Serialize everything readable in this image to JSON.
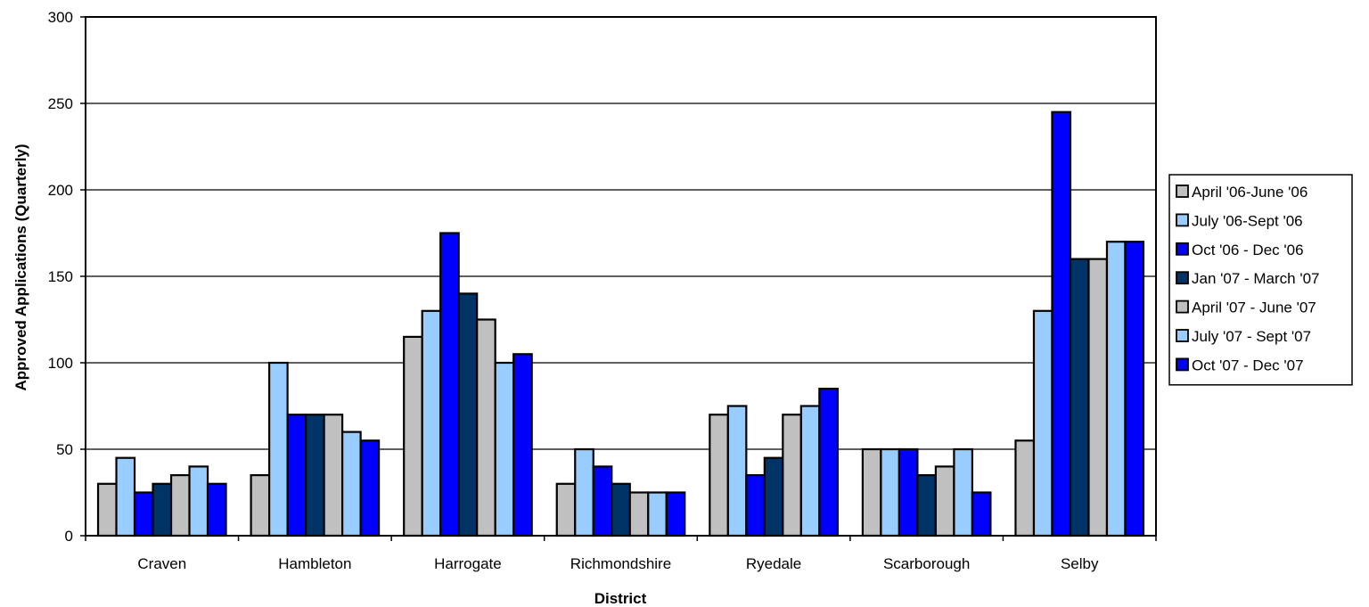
{
  "chart_data": {
    "type": "bar",
    "title": "",
    "xlabel": "District",
    "ylabel": "Approved Applications (Quarterly)",
    "ylim": [
      0,
      300
    ],
    "yticks": [
      0,
      50,
      100,
      150,
      200,
      250,
      300
    ],
    "grid": true,
    "legend_position": "right",
    "categories": [
      "Craven",
      "Hambleton",
      "Harrogate",
      "Richmondshire",
      "Ryedale",
      "Scarborough",
      "Selby"
    ],
    "series": [
      {
        "name": "April '06-June '06",
        "color": "#c0c0c0",
        "values": [
          30,
          35,
          115,
          30,
          70,
          50,
          55
        ]
      },
      {
        "name": "July '06-Sept '06",
        "color": "#99ccff",
        "values": [
          45,
          100,
          130,
          50,
          75,
          50,
          130
        ]
      },
      {
        "name": "Oct '06 - Dec '06",
        "color": "#0000ff",
        "values": [
          25,
          70,
          175,
          40,
          35,
          50,
          245
        ]
      },
      {
        "name": "Jan '07 - March '07",
        "color": "#003366",
        "values": [
          30,
          70,
          140,
          30,
          45,
          35,
          160
        ]
      },
      {
        "name": "April '07 - June '07",
        "color": "#c0c0c0",
        "values": [
          35,
          70,
          125,
          25,
          70,
          40,
          160
        ]
      },
      {
        "name": "July '07 - Sept '07",
        "color": "#99ccff",
        "values": [
          40,
          60,
          100,
          25,
          75,
          50,
          170
        ]
      },
      {
        "name": "Oct '07 - Dec '07",
        "color": "#0000ff",
        "values": [
          30,
          55,
          105,
          25,
          85,
          25,
          170
        ]
      }
    ]
  }
}
